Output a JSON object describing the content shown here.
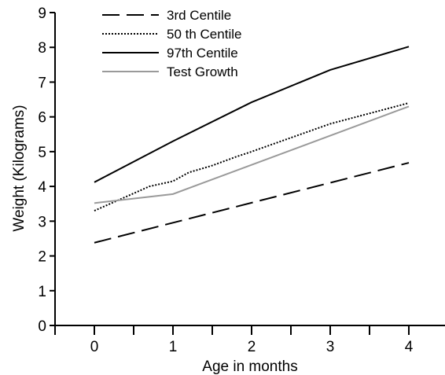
{
  "chart_data": {
    "type": "line",
    "xlabel": "Age in months",
    "ylabel": "Weight (Kilograms)",
    "xlim": [
      -0.5,
      4.5
    ],
    "ylim": [
      0,
      9
    ],
    "x_ticks_major": [
      0,
      1,
      2,
      3,
      4
    ],
    "x_ticks_minor": [
      0.5,
      1.5,
      2.5,
      3.5
    ],
    "y_ticks": [
      0,
      1,
      2,
      3,
      4,
      5,
      6,
      7,
      8,
      9
    ],
    "grid": false,
    "legend_position": "top-left",
    "series": [
      {
        "name": "3rd Centile",
        "color": "#000000",
        "dash": "long-dash",
        "x": [
          0,
          4
        ],
        "y": [
          2.38,
          4.68
        ]
      },
      {
        "name": "50 th Centile",
        "color": "#000000",
        "dash": "dotted",
        "x": [
          0,
          0.2,
          0.5,
          0.7,
          1.0,
          1.2,
          1.5,
          1.8,
          2.0,
          2.5,
          3.0,
          3.5,
          4.0
        ],
        "y": [
          3.3,
          3.5,
          3.8,
          4.0,
          4.15,
          4.4,
          4.6,
          4.85,
          5.0,
          5.4,
          5.8,
          6.1,
          6.4
        ]
      },
      {
        "name": "97th Centile",
        "color": "#000000",
        "dash": "solid",
        "x": [
          0,
          1,
          2,
          3,
          4
        ],
        "y": [
          4.12,
          5.3,
          6.42,
          7.35,
          8.02
        ]
      },
      {
        "name": "Test Growth",
        "color": "#9a9a9a",
        "dash": "solid",
        "x": [
          0,
          1,
          4
        ],
        "y": [
          3.52,
          3.78,
          6.3
        ]
      }
    ]
  }
}
